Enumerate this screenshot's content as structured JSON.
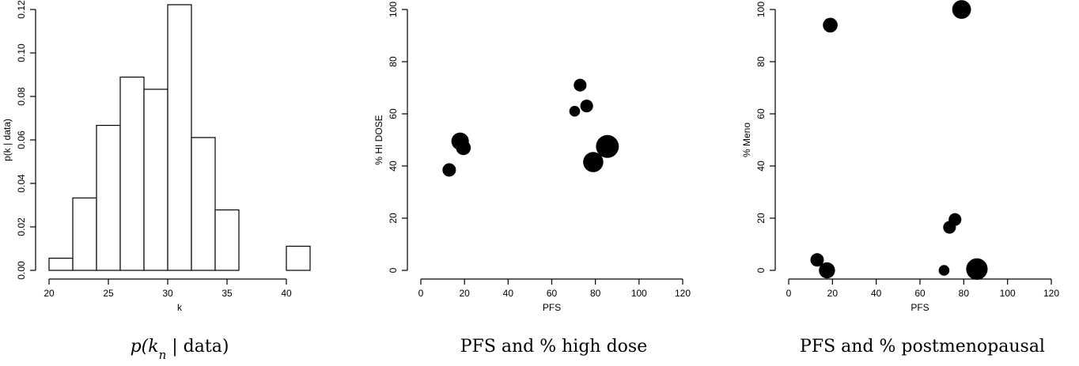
{
  "chart_data": [
    {
      "type": "bar",
      "xlabel": "k",
      "ylabel": "p(k | data)",
      "caption": "p(k_n | data)",
      "bins": [
        [
          20,
          22
        ],
        [
          22,
          24
        ],
        [
          24,
          26
        ],
        [
          26,
          28
        ],
        [
          28,
          30
        ],
        [
          30,
          32
        ],
        [
          32,
          34
        ],
        [
          34,
          36
        ],
        [
          36,
          38
        ],
        [
          38,
          40
        ],
        [
          40,
          42
        ]
      ],
      "values": [
        0.0056,
        0.0333,
        0.0667,
        0.0889,
        0.0833,
        0.1222,
        0.0611,
        0.0278,
        0,
        0,
        0.0111
      ],
      "xlim": [
        20,
        42
      ],
      "ylim": [
        0,
        0.12
      ],
      "xticks": [
        20,
        25,
        30,
        35,
        40
      ],
      "yticks": [
        "0.00",
        "0.02",
        "0.04",
        "0.06",
        "0.08",
        "0.10",
        "0.12"
      ]
    },
    {
      "type": "scatter",
      "xlabel": "PFS",
      "ylabel": "% HI DOSE",
      "caption": "PFS and % high dose",
      "x": [
        13,
        18,
        19.5,
        70.5,
        73,
        76,
        79,
        85.5
      ],
      "y": [
        38.5,
        49.5,
        47,
        61,
        71,
        63,
        41.5,
        47.5
      ],
      "size": [
        1,
        1.3,
        1.1,
        0.8,
        0.95,
        0.95,
        1.5,
        1.7
      ],
      "xlim": [
        0,
        120
      ],
      "ylim": [
        0,
        100
      ],
      "xticks": [
        0,
        20,
        40,
        60,
        80,
        100,
        120
      ],
      "yticks": [
        0,
        20,
        40,
        60,
        80,
        100
      ]
    },
    {
      "type": "scatter",
      "xlabel": "PFS",
      "ylabel": "% Meno",
      "caption": "PFS and % postmenopausal",
      "x": [
        13,
        17.5,
        19,
        71,
        73.5,
        76,
        79,
        86
      ],
      "y": [
        4,
        0,
        94,
        0,
        16.5,
        19.5,
        100,
        0.5
      ],
      "size": [
        1,
        1.2,
        1.1,
        0.8,
        0.95,
        0.95,
        1.4,
        1.6
      ],
      "xlim": [
        0,
        120
      ],
      "ylim": [
        0,
        100
      ],
      "xticks": [
        0,
        20,
        40,
        60,
        80,
        100,
        120
      ],
      "yticks": [
        0,
        20,
        40,
        60,
        80,
        100
      ]
    }
  ]
}
